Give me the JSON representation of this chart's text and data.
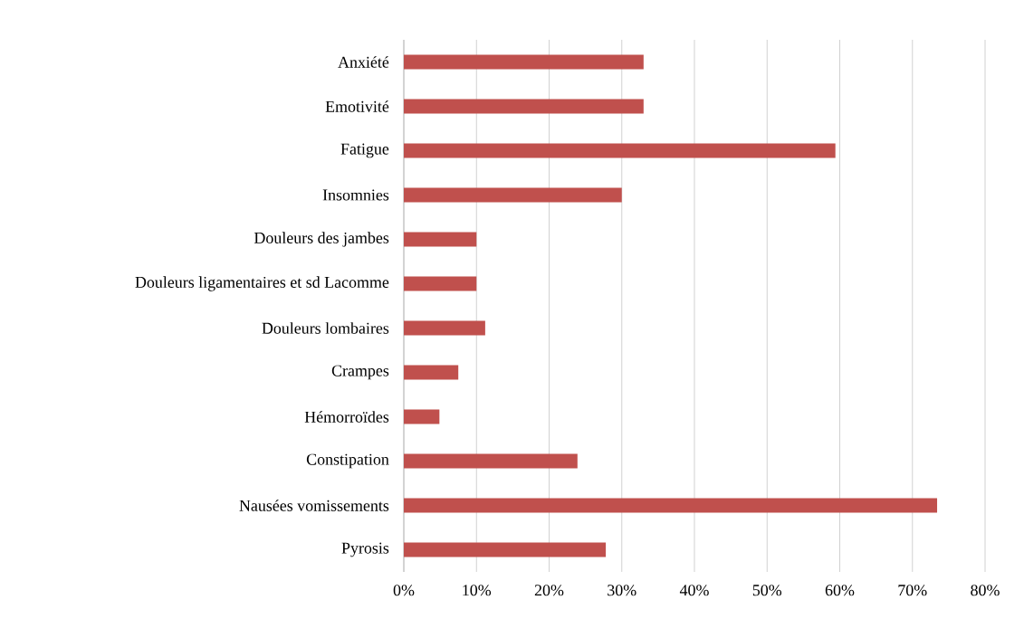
{
  "chart_data": {
    "type": "bar",
    "orientation": "horizontal",
    "categories": [
      "Anxiété",
      "Emotivité",
      "Fatigue",
      "Insomnies",
      "Douleurs des jambes",
      "Douleurs ligamentaires et sd Lacomme",
      "Douleurs lombaires",
      "Crampes",
      "Hémorroïdes",
      "Constipation",
      "Nausées vomissements",
      "Pyrosis"
    ],
    "values": [
      33,
      33,
      59.4,
      30,
      10,
      10,
      11.2,
      7.5,
      4.9,
      23.9,
      73.4,
      27.8
    ],
    "color": "#c0504d",
    "xlim": [
      0,
      80
    ],
    "xticks": [
      {
        "value": 0,
        "label": "0%"
      },
      {
        "value": 10,
        "label": "10%"
      },
      {
        "value": 20,
        "label": "20%"
      },
      {
        "value": 30,
        "label": "30%"
      },
      {
        "value": 40,
        "label": "40%"
      },
      {
        "value": 50,
        "label": "50%"
      },
      {
        "value": 60,
        "label": "60%"
      },
      {
        "value": 70,
        "label": "70%"
      },
      {
        "value": 80,
        "label": "80%"
      }
    ],
    "grid": "x"
  }
}
